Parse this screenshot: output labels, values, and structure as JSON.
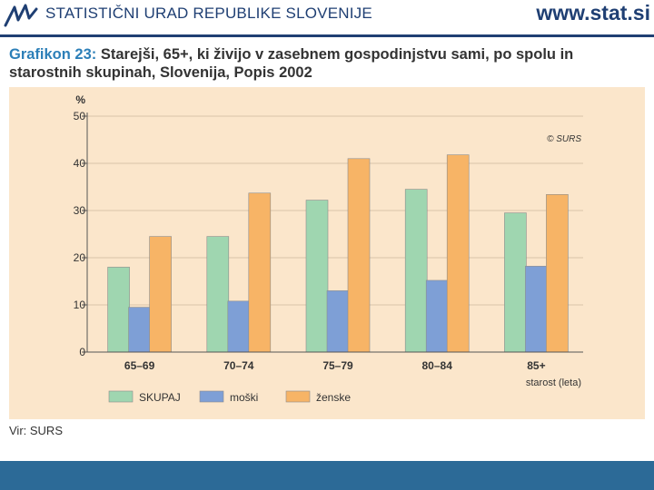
{
  "header": {
    "org_name": "STATISTIČNI URAD REPUBLIKE SLOVENIJE",
    "website": "www.stat.si"
  },
  "title": {
    "label": "Grafikon 23:",
    "text": "Starejši, 65+, ki živijo v zasebnem gospodinjstvu sami, po spolu in starostnih skupinah, Slovenija, Popis 2002"
  },
  "source": "Vir: SURS",
  "colors": {
    "skupaj": "#9fd6b0",
    "moski": "#7e9fd6",
    "zenske": "#f7b466",
    "panel": "#fbe6cb",
    "axis": "#555555",
    "footer": "#2c6a97"
  },
  "chart_data": {
    "type": "bar",
    "ylabel": "%",
    "xlabel": "starost (leta)",
    "copyright": "© SURS",
    "ylim": [
      0,
      50
    ],
    "yticks": [
      0,
      10,
      20,
      30,
      40,
      50
    ],
    "grid": true,
    "legend_position": "bottom",
    "categories": [
      "65–69",
      "70–74",
      "75–79",
      "80–84",
      "85+"
    ],
    "series": [
      {
        "name": "SKUPAJ",
        "color": "#9fd6b0",
        "values": [
          18.0,
          24.5,
          32.2,
          34.5,
          29.5
        ]
      },
      {
        "name": "moški",
        "color": "#7e9fd6",
        "values": [
          9.5,
          10.8,
          13.0,
          15.2,
          18.2
        ]
      },
      {
        "name": "ženske",
        "color": "#f7b466",
        "values": [
          24.5,
          33.7,
          41.0,
          41.8,
          33.4
        ]
      }
    ]
  }
}
